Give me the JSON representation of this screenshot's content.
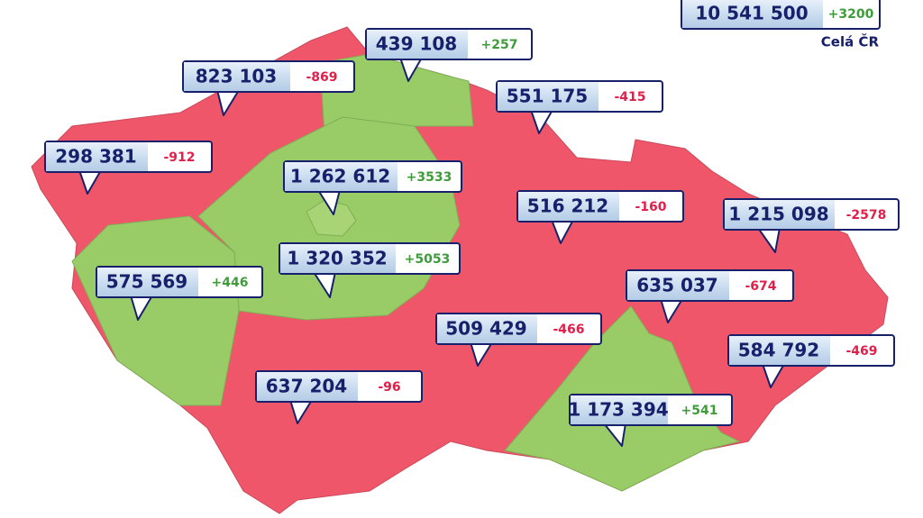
{
  "regions": [
    {
      "population": "439 108",
      "change": "+257"
    },
    {
      "population": "823 103",
      "change": "-869"
    },
    {
      "population": "551 175",
      "change": "-415"
    },
    {
      "population": "298 381",
      "change": "-912"
    },
    {
      "population": "1 262 612",
      "change": "+3533"
    },
    {
      "population": "516 212",
      "change": "-160"
    },
    {
      "population": "1 215 098",
      "change": "-2578"
    },
    {
      "population": "1 320 352",
      "change": "+5053"
    },
    {
      "population": "575 569",
      "change": "+446"
    },
    {
      "population": "635 037",
      "change": "-674"
    },
    {
      "population": "509 429",
      "change": "-466"
    },
    {
      "population": "584 792",
      "change": "-469"
    },
    {
      "population": "637 204",
      "change": "-96"
    },
    {
      "population": "1 173 394",
      "change": "+541"
    }
  ],
  "total": {
    "population": "10 541 500",
    "change": "+3200",
    "label": "Celá ČR"
  }
}
